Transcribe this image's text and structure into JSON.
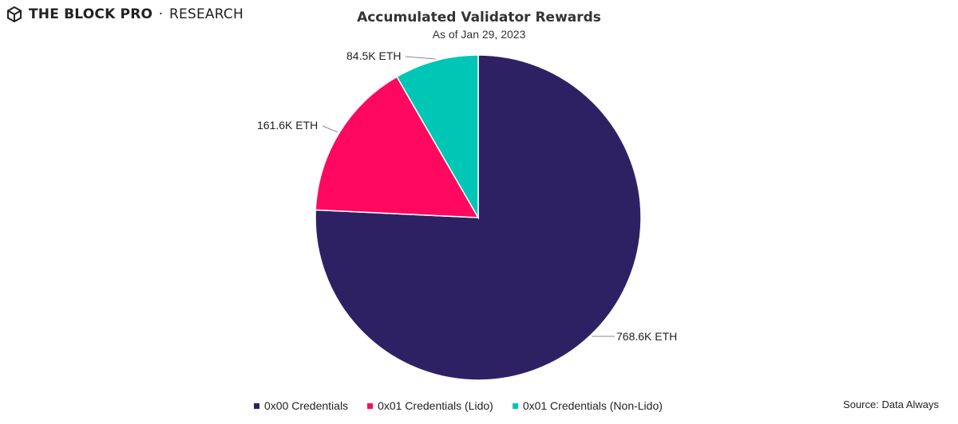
{
  "brand": {
    "name_bold": "THE BLOCK PRO",
    "separator": "·",
    "name_light": "RESEARCH",
    "logo_icon": "cube-icon"
  },
  "source_text": "Source: Data Always",
  "colors": {
    "slice_0x00": "#2e2163",
    "slice_lido": "#ff0860",
    "slice_nonlido": "#00c6b6",
    "leader_line": "#888888"
  },
  "chart_data": {
    "type": "pie",
    "title": "Accumulated Validator Rewards",
    "subtitle": "As of Jan 29, 2023",
    "slices": [
      {
        "name": "0x00 Credentials",
        "value": 768.6,
        "label": "768.6K ETH",
        "color": "#2e2163"
      },
      {
        "name": "0x01 Credentials (Lido)",
        "value": 161.6,
        "label": "161.6K ETH",
        "color": "#ff0860"
      },
      {
        "name": "0x01 Credentials (Non-Lido)",
        "value": 84.5,
        "label": "84.5K ETH",
        "color": "#00c6b6"
      }
    ],
    "unit": "K ETH",
    "legend_position": "bottom"
  }
}
